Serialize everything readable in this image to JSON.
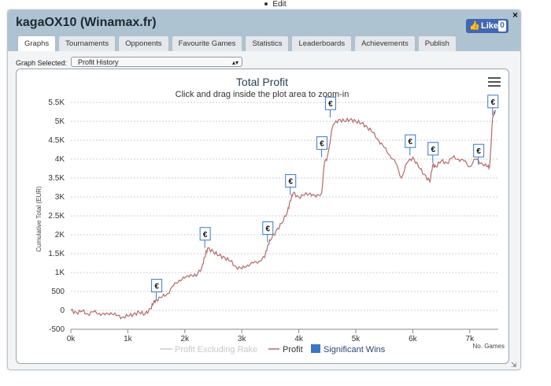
{
  "topbar": {
    "edit_label": "Edit"
  },
  "window": {
    "title": "kagaOX10 (Winamax.fr)",
    "close_glyph": "×"
  },
  "like": {
    "label": "Like",
    "count": "0"
  },
  "tabs": [
    {
      "label": "Graphs",
      "active": true
    },
    {
      "label": "Tournaments"
    },
    {
      "label": "Opponents"
    },
    {
      "label": "Favourite Games"
    },
    {
      "label": "Statistics"
    },
    {
      "label": "Leaderboards"
    },
    {
      "label": "Achievements"
    },
    {
      "label": "Publish"
    }
  ],
  "graph_select": {
    "label": "Graph Selected:",
    "value": "Profit History"
  },
  "chart_data": {
    "type": "line",
    "title": "Total Profit",
    "subtitle": "Click and drag inside the plot area to zoom-in",
    "ylabel": "Cumulative Total (EUR)",
    "xlabel": "No. Games",
    "x_tick_labels": [
      "0k",
      "1k",
      "2k",
      "3k",
      "4k",
      "5k",
      "6k",
      "7k"
    ],
    "y_tick_labels": [
      "-500",
      "0",
      "500",
      "1K",
      "1.5K",
      "2K",
      "2.5K",
      "3K",
      "3.5K",
      "4K",
      "4.5K",
      "5K",
      "5.5K"
    ],
    "xlim": [
      0,
      7500
    ],
    "ylim": [
      -500,
      5500
    ],
    "grid": true,
    "legend_placement": "bottom-center",
    "colors": {
      "profit": "#b56a6a",
      "profit_ex_rake": "#cccccc",
      "wins": "#3a78c4"
    },
    "series": [
      {
        "name": "Profit Excluding Rake",
        "hidden": true,
        "x": [],
        "y": []
      },
      {
        "name": "Profit",
        "x": [
          0,
          100,
          200,
          300,
          400,
          500,
          600,
          700,
          800,
          900,
          1000,
          1100,
          1200,
          1300,
          1400,
          1450,
          1500,
          1600,
          1700,
          1800,
          1900,
          2000,
          2100,
          2200,
          2300,
          2350,
          2400,
          2500,
          2600,
          2700,
          2800,
          2900,
          3000,
          3100,
          3200,
          3300,
          3400,
          3450,
          3500,
          3600,
          3700,
          3800,
          3850,
          3900,
          4000,
          4100,
          4200,
          4300,
          4400,
          4450,
          4500,
          4600,
          4700,
          4800,
          4900,
          5000,
          5100,
          5200,
          5300,
          5400,
          5500,
          5600,
          5700,
          5800,
          5900,
          6000,
          6100,
          6200,
          6300,
          6350,
          6400,
          6500,
          6600,
          6700,
          6800,
          6900,
          7000,
          7100,
          7200,
          7300,
          7350,
          7400,
          7450
        ],
        "y": [
          0,
          -60,
          -20,
          -100,
          -40,
          -80,
          -120,
          -60,
          -140,
          -180,
          -150,
          -100,
          -50,
          -100,
          50,
          200,
          280,
          350,
          450,
          650,
          800,
          850,
          950,
          900,
          1150,
          1400,
          1650,
          1550,
          1450,
          1400,
          1300,
          1150,
          1100,
          1200,
          1250,
          1300,
          1400,
          1700,
          1850,
          2100,
          2300,
          2600,
          2900,
          3100,
          3000,
          3050,
          3100,
          3000,
          3100,
          3900,
          4050,
          4900,
          5050,
          5000,
          5050,
          5000,
          4950,
          4850,
          4700,
          4500,
          4300,
          4100,
          3900,
          3500,
          3900,
          4050,
          3800,
          3600,
          3400,
          3850,
          3800,
          3950,
          3900,
          4050,
          4000,
          3950,
          3800,
          4000,
          3900,
          3800,
          3800,
          5100,
          5300
        ]
      },
      {
        "name": "Significant Wins",
        "type": "flags",
        "flag_label": "€",
        "x": [
          1500,
          2350,
          3450,
          3850,
          4400,
          4550,
          5950,
          6350,
          7150,
          7400
        ],
        "y": [
          280,
          1650,
          1800,
          3050,
          4050,
          5100,
          4100,
          3900,
          3850,
          5150
        ]
      }
    ]
  }
}
